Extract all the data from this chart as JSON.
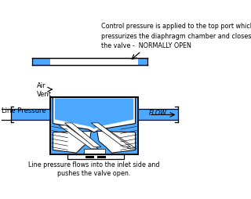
{
  "bg_color": "#ffffff",
  "title_text": "Control pressure is applied to the top port which\npressurizes the diaphragm chamber and closes\nthe valve -  NORMALLY OPEN",
  "bottom_text": "Line pressure flows into the inlet side and\npushes the valve open.",
  "air_vent_text": "Air\nVent",
  "line_pressure_text": "Line Pressure",
  "flow_text": "FLOW",
  "blue": "#4da8ff",
  "black": "#000000",
  "white": "#ffffff",
  "light_gray": "#d0d0d0",
  "figsize": [
    3.2,
    2.54
  ],
  "dpi": 100
}
